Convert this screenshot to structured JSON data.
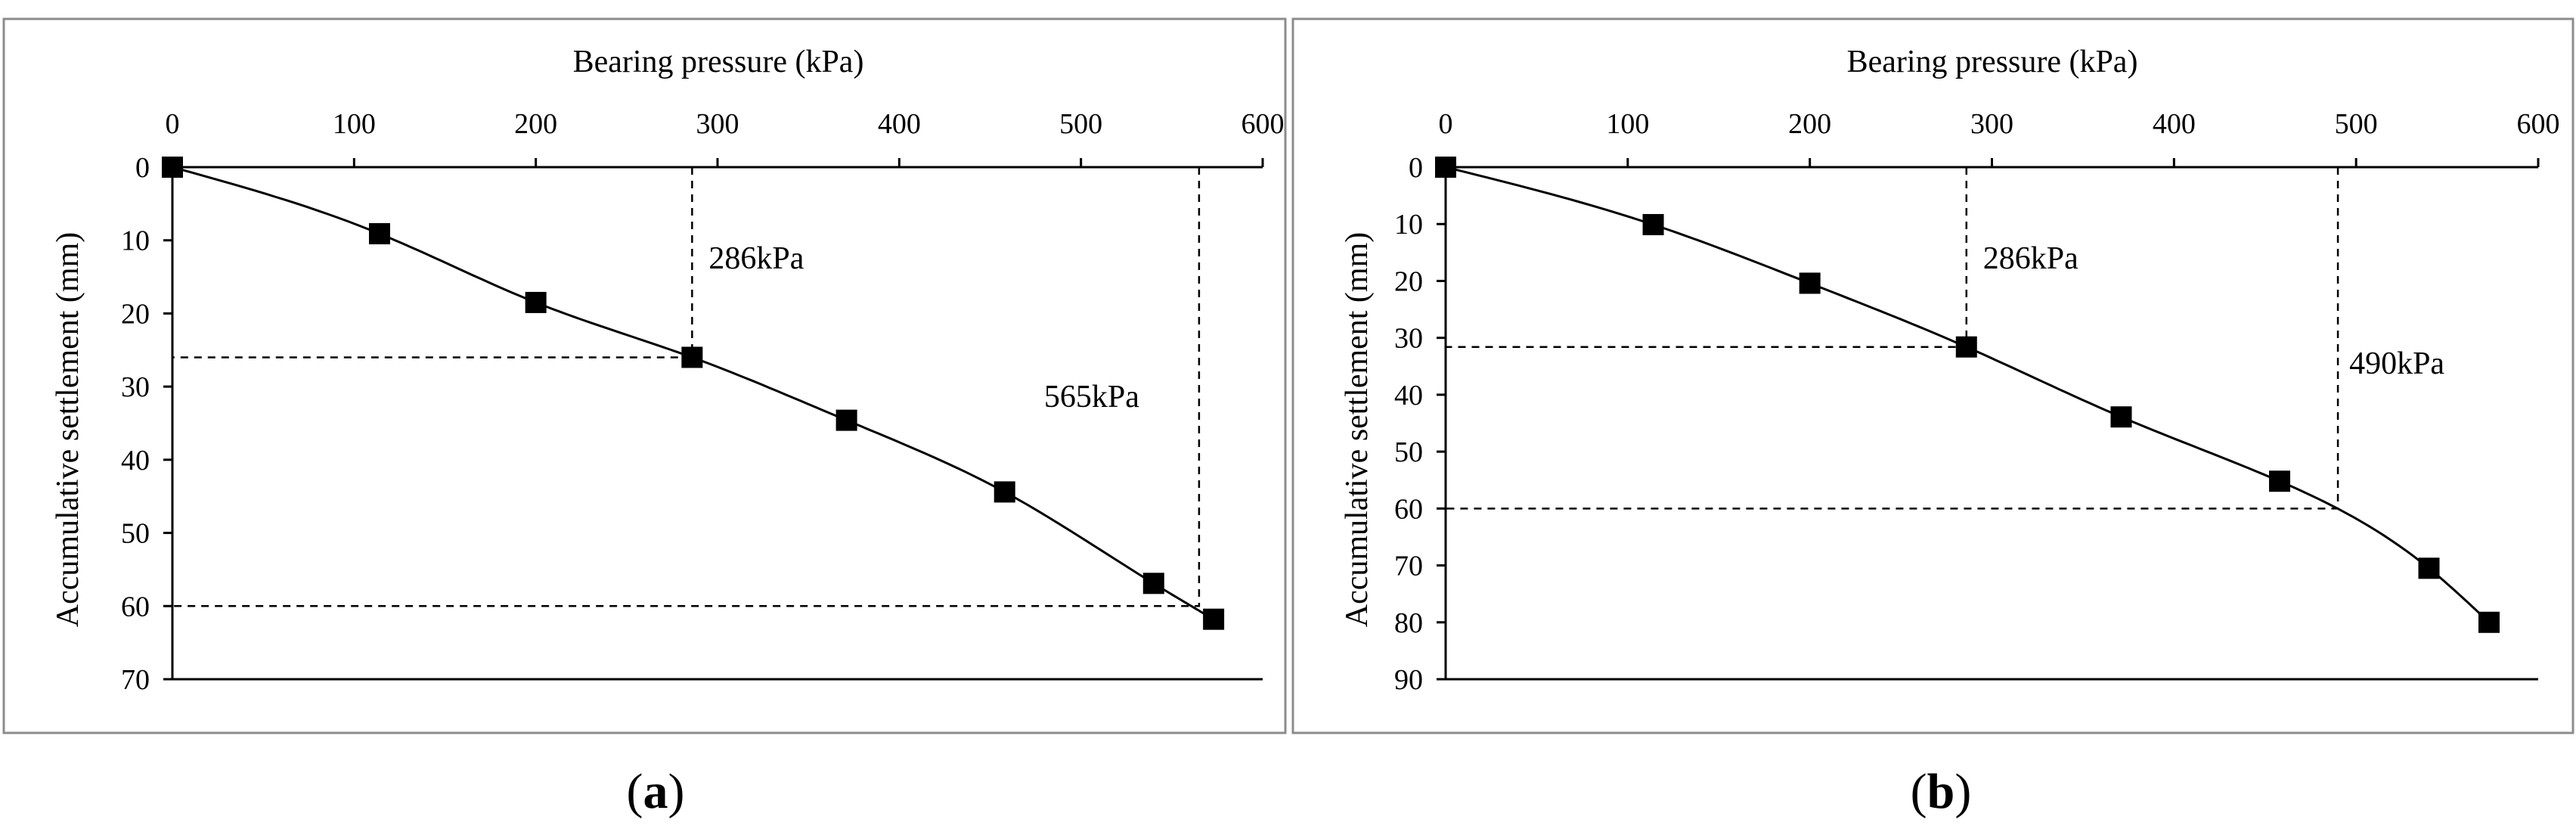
{
  "chart_data": [
    {
      "type": "line",
      "panel_label": "a",
      "xlabel": "Bearing pressure (kPa)",
      "ylabel": "Accumulative settlement (mm)",
      "x_axis_position": "top",
      "y_axis_inverted": true,
      "xlim": [
        0,
        600
      ],
      "ylim": [
        0,
        70
      ],
      "xticks": [
        "0",
        "100",
        "200",
        "300",
        "400",
        "500",
        "600"
      ],
      "yticks": [
        "0",
        "10",
        "20",
        "30",
        "40",
        "50",
        "60",
        "70"
      ],
      "grid": false,
      "legend": "none",
      "series": [
        {
          "x": [
            0,
            114,
            200,
            286,
            371,
            458,
            540,
            573
          ],
          "y": [
            0,
            9.1,
            18.5,
            26.0,
            34.6,
            44.4,
            56.9,
            61.8
          ]
        }
      ],
      "guides": [
        {
          "label": "286kPa",
          "x": 286,
          "y": 26.0
        },
        {
          "label": "565kPa",
          "x": 565,
          "y": 60.0
        }
      ]
    },
    {
      "type": "line",
      "panel_label": "b",
      "xlabel": "Bearing pressure (kPa)",
      "ylabel": "Accumulative settlement (mm)",
      "x_axis_position": "top",
      "y_axis_inverted": true,
      "xlim": [
        0,
        600
      ],
      "ylim": [
        0,
        90
      ],
      "xticks": [
        "0",
        "100",
        "200",
        "300",
        "400",
        "500",
        "600"
      ],
      "yticks": [
        "0",
        "10",
        "20",
        "30",
        "40",
        "50",
        "60",
        "70",
        "80",
        "90"
      ],
      "grid": false,
      "legend": "none",
      "series": [
        {
          "x": [
            0,
            114,
            200,
            286,
            371,
            458,
            540,
            573
          ],
          "y": [
            0,
            10.1,
            20.4,
            31.6,
            43.9,
            55.2,
            70.5,
            80.0
          ]
        }
      ],
      "guides": [
        {
          "label": "286kPa",
          "x": 286,
          "y": 31.6
        },
        {
          "label": "490kPa",
          "x": 490,
          "y": 60.0
        }
      ]
    }
  ]
}
